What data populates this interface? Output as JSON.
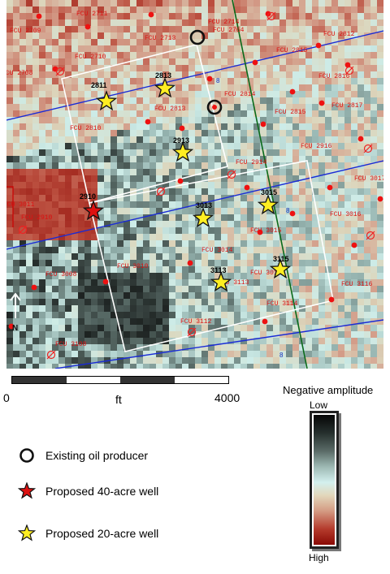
{
  "map": {
    "fcu_labels": [
      "FCU 2711",
      "FCU 2709",
      "FCU 2710",
      "FCU 2708",
      "FCU 2714",
      "FCU 2764",
      "FCU 2713",
      "FCU 2815",
      "FCU 2812",
      "FCU 2816",
      "FCU 2813",
      "FCU 2814",
      "FCU 2810",
      "FCU 2817",
      "FCU 2815",
      "FCU 2916",
      "FCU 3017",
      "FCU 2914",
      "FCU 3015",
      "FCU 3016",
      "FCU 2910",
      "FCU 3014",
      "FCU 3011",
      "FCU 3010",
      "FCU 3008",
      "FCU 3113",
      "FCU 3114",
      "FCU 3112",
      "FCU 3108",
      "FCU 3116",
      "FCU 3012"
    ],
    "well_labels": [
      "2811",
      "2813",
      "2913",
      "3013",
      "3015",
      "3113",
      "3115",
      "2910"
    ],
    "blue_labels": [
      "8",
      "8",
      "8"
    ]
  },
  "scale": {
    "min_label": "0",
    "unit_label": "ft",
    "max_label": "4000"
  },
  "colorbar": {
    "title": "Negative amplitude",
    "low_label": "Low",
    "high_label": "High"
  },
  "north": {
    "label": "N"
  },
  "legend": {
    "existing": "Existing oil producer",
    "proposed40": "Proposed 40-acre well",
    "proposed20": "Proposed 20-acre well"
  },
  "colors": {
    "existing_ring": "#111111",
    "star_red": "#dd1111",
    "star_yellow": "#ffee22",
    "boundary": "#ffffff",
    "blue_line": "#1a2bd6",
    "green_line": "#0a6a1a",
    "well_dot": "#ee1111"
  }
}
